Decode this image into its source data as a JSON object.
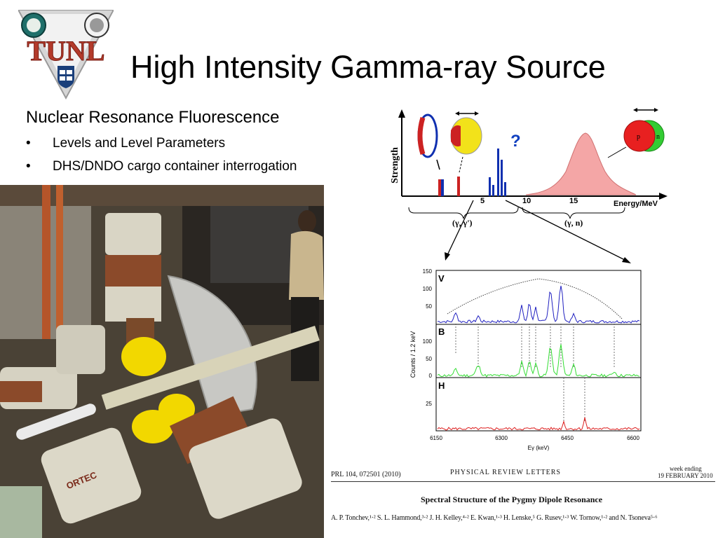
{
  "slide": {
    "title": "High Intensity Gamma-ray Source",
    "subtitle": "Nuclear Resonance Fluorescence",
    "bullets": [
      {
        "marker": "•",
        "text": "Levels and Level Parameters"
      },
      {
        "marker": "•",
        "text": "DHS/DNDO cargo container interrogation"
      }
    ]
  },
  "logo": {
    "text": "TUNL",
    "colors": {
      "letters": "#b33a2a",
      "shield": "#1a3f7a",
      "frame": "#c9c9c9"
    }
  },
  "photo": {
    "labels": {
      "detector_brand": "ORTEC"
    }
  },
  "diagram": {
    "y_label": "Strength",
    "x_label": "Energy/MeV",
    "x_ticks": [
      "5",
      "10",
      "15"
    ],
    "question_mark": "?",
    "region_labels": [
      "(γ, γ')",
      "(γ, n)"
    ],
    "nucleon_labels": [
      "p",
      "n"
    ],
    "colors": {
      "resonance_fill": "#f4a6a6",
      "low_lines": "#cc2222",
      "pygmy_lines": "#1030b0",
      "proton": "#e82020",
      "neutron": "#33cc33"
    }
  },
  "spectra": {
    "y_label": "Counts / 1.2 keV",
    "x_label": "Eγ (keV)",
    "x_ticks": [
      "6150",
      "6300",
      "6450",
      "6600"
    ],
    "panels": [
      {
        "tag": "V",
        "y_ticks": [
          "150",
          "100",
          "50"
        ],
        "color": "#2020c0"
      },
      {
        "tag": "B",
        "y_ticks": [
          "100",
          "50",
          "0"
        ],
        "color": "#33dd33"
      },
      {
        "tag": "H",
        "y_ticks": [
          "25"
        ],
        "color": "#dd2020"
      }
    ]
  },
  "paper": {
    "citation": "PRL 104, 072501 (2010)",
    "journal": "PHYSICAL   REVIEW   LETTERS",
    "week_ending": "week ending",
    "date": "19 FEBRUARY 2010",
    "title": "Spectral Structure of the Pygmy Dipole Resonance",
    "authors": "A. P. Tonchev,¹·² S. L. Hammond,³·² J. H. Kelley,⁴·² E. Kwan,¹·³ H. Lenske,⁵ G. Rusev,¹·³ W. Tornow,¹·² and N. Tsoneva⁵·⁶"
  }
}
